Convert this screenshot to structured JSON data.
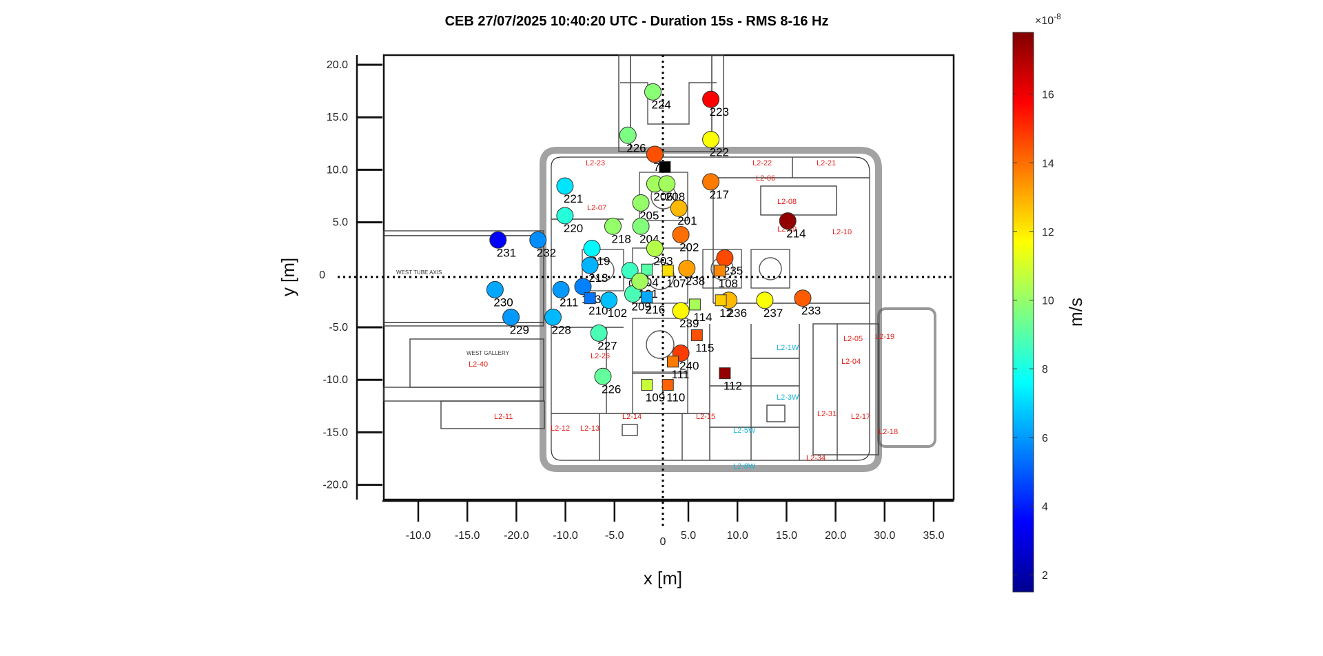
{
  "chart_data": {
    "type": "scatter",
    "title": "CEB 27/07/2025 10:40:20 UTC - Duration 15s - RMS 8-16 Hz",
    "xlabel": "x [m]",
    "ylabel": "y [m]",
    "x_ticks": [
      {
        "label": "-10.0"
      },
      {
        "label": "-15.0"
      },
      {
        "label": "-20.0"
      },
      {
        "label": "-10.0"
      },
      {
        "label": "-5.0"
      },
      {
        "label": "0"
      },
      {
        "label": "5.0"
      },
      {
        "label": "10.0"
      },
      {
        "label": "15.0"
      },
      {
        "label": "20.0"
      },
      {
        "label": "30.0"
      },
      {
        "label": "35.0"
      }
    ],
    "y_ticks": [
      "20.0",
      "15.0",
      "10.0",
      "5.0",
      "0",
      "-5.0",
      "-10.0",
      "-15.0",
      "-20.0"
    ],
    "xlim": [
      -22,
      31
    ],
    "ylim": [
      -21,
      21
    ],
    "colorbar": {
      "label": "m/s",
      "exponent": "×10",
      "exponent_power": "-8",
      "min": 1.5,
      "max": 17.8,
      "ticks": [
        "2",
        "4",
        "6",
        "8",
        "10",
        "12",
        "14",
        "16"
      ],
      "colormap": "jet"
    },
    "floorplan_labels": [
      "L2-23",
      "L2-22",
      "L2-21",
      "L2-07",
      "L2-06",
      "L2-08",
      "L2-09",
      "L2-10",
      "L2-40",
      "L2-11",
      "L2-12",
      "L2-13",
      "L2-14",
      "L2-15",
      "L2-26",
      "L2-31",
      "L2-34",
      "L2-05",
      "L2-04",
      "L2-19",
      "L2-17",
      "L2-18",
      "L2-1W",
      "L2-3W",
      "L2-5W",
      "L2-8W",
      "WEST GALLERY",
      "WEST TUBE AXIS"
    ],
    "points": [
      {
        "label": "224",
        "shape": "circle",
        "x": -1.0,
        "y": 17.5,
        "value": 9.8
      },
      {
        "label": "223",
        "shape": "circle",
        "x": 4.8,
        "y": 16.8,
        "value": 15.8
      },
      {
        "label": "226",
        "shape": "circle",
        "x": -3.5,
        "y": 13.4,
        "value": 9.6
      },
      {
        "label": "222",
        "shape": "circle",
        "x": 4.8,
        "y": 13.0,
        "value": 11.6
      },
      {
        "label": "7",
        "shape": "circle",
        "x": -0.8,
        "y": 11.6,
        "value": 14.5
      },
      {
        "label": "7",
        "shape": "square",
        "x": 0.2,
        "y": 10.4,
        "value": 0.5
      },
      {
        "label": "221",
        "shape": "circle",
        "x": -9.8,
        "y": 8.6,
        "value": 7.2
      },
      {
        "label": "217",
        "shape": "circle",
        "x": 4.8,
        "y": 9.0,
        "value": 13.8
      },
      {
        "label": "206",
        "shape": "circle",
        "x": -0.8,
        "y": 8.8,
        "value": 10.2
      },
      {
        "label": "208",
        "shape": "circle",
        "x": 0.4,
        "y": 8.8,
        "value": 10.2
      },
      {
        "label": "205",
        "shape": "circle",
        "x": -2.2,
        "y": 7.0,
        "value": 10.0
      },
      {
        "label": "201",
        "shape": "circle",
        "x": 1.6,
        "y": 6.5,
        "value": 12.8
      },
      {
        "label": "220",
        "shape": "circle",
        "x": -9.8,
        "y": 5.8,
        "value": 8.2
      },
      {
        "label": "218",
        "shape": "circle",
        "x": -5.0,
        "y": 4.8,
        "value": 10.0
      },
      {
        "label": "204",
        "shape": "circle",
        "x": -2.2,
        "y": 4.8,
        "value": 9.7
      },
      {
        "label": "214",
        "shape": "circle",
        "x": 12.5,
        "y": 5.3,
        "value": 17.5
      },
      {
        "label": "202",
        "shape": "circle",
        "x": 1.8,
        "y": 4.0,
        "value": 14.0
      },
      {
        "label": "231",
        "shape": "circle",
        "x": -16.5,
        "y": 3.5,
        "value": 3.5
      },
      {
        "label": "232",
        "shape": "circle",
        "x": -12.5,
        "y": 3.5,
        "value": 5.8
      },
      {
        "label": "219",
        "shape": "circle",
        "x": -7.1,
        "y": 2.7,
        "value": 7.5
      },
      {
        "label": "203",
        "shape": "circle",
        "x": -0.8,
        "y": 2.7,
        "value": 10.5
      },
      {
        "label": "213",
        "shape": "circle",
        "x": -7.3,
        "y": 1.1,
        "value": 6.4
      },
      {
        "label": "235",
        "shape": "circle",
        "x": 6.2,
        "y": 1.8,
        "value": 14.6
      },
      {
        "label": "04",
        "shape": "circle",
        "x": -3.3,
        "y": 0.6,
        "value": 8.6
      },
      {
        "label": "04",
        "shape": "square",
        "x": -1.6,
        "y": 0.7,
        "value": 9.0
      },
      {
        "label": "107",
        "shape": "square",
        "x": 0.5,
        "y": 0.6,
        "value": 12.2
      },
      {
        "label": "238",
        "shape": "circle",
        "x": 2.4,
        "y": 0.8,
        "value": 13.2
      },
      {
        "label": "108",
        "shape": "square",
        "x": 5.7,
        "y": 0.6,
        "value": 13.6
      },
      {
        "label": "103",
        "shape": "circle",
        "x": -8.0,
        "y": -0.9,
        "value": 5.6
      },
      {
        "label": "211",
        "shape": "circle",
        "x": -10.2,
        "y": -1.2,
        "value": 6.0
      },
      {
        "label": "230",
        "shape": "circle",
        "x": -16.8,
        "y": -1.2,
        "value": 6.2
      },
      {
        "label": "210",
        "shape": "square",
        "x": -7.3,
        "y": -2.0,
        "value": 5.4
      },
      {
        "label": "102",
        "shape": "circle",
        "x": -5.4,
        "y": -2.2,
        "value": 6.6
      },
      {
        "label": "209",
        "shape": "circle",
        "x": -3.0,
        "y": -1.6,
        "value": 8.8
      },
      {
        "label": "101",
        "shape": "circle",
        "x": -2.3,
        "y": -0.4,
        "value": 10.2
      },
      {
        "label": "216",
        "shape": "square",
        "x": -1.6,
        "y": -1.9,
        "value": 6.2
      },
      {
        "label": "114",
        "shape": "square",
        "x": 3.2,
        "y": -2.6,
        "value": 10.3
      },
      {
        "label": "236",
        "shape": "circle",
        "x": 6.6,
        "y": -2.2,
        "value": 12.8
      },
      {
        "label": "12",
        "shape": "square",
        "x": 5.8,
        "y": -2.2,
        "value": 12.5
      },
      {
        "label": "237",
        "shape": "circle",
        "x": 10.2,
        "y": -2.2,
        "value": 11.6
      },
      {
        "label": "233",
        "shape": "circle",
        "x": 14.0,
        "y": -2.0,
        "value": 14.3
      },
      {
        "label": "239",
        "shape": "circle",
        "x": 1.8,
        "y": -3.2,
        "value": 11.8
      },
      {
        "label": "229",
        "shape": "circle",
        "x": -15.2,
        "y": -3.8,
        "value": 6.0
      },
      {
        "label": "228",
        "shape": "circle",
        "x": -11.0,
        "y": -3.8,
        "value": 6.5
      },
      {
        "label": "227",
        "shape": "circle",
        "x": -6.4,
        "y": -5.3,
        "value": 8.8
      },
      {
        "label": "115",
        "shape": "square",
        "x": 3.4,
        "y": -5.5,
        "value": 14.5
      },
      {
        "label": "240",
        "shape": "circle",
        "x": 1.8,
        "y": -7.2,
        "value": 14.8
      },
      {
        "label": "111",
        "shape": "square",
        "x": 1.0,
        "y": -8.0,
        "value": 13.8
      },
      {
        "label": "112",
        "shape": "square",
        "x": 6.2,
        "y": -9.1,
        "value": 17.5
      },
      {
        "label": "226",
        "shape": "circle",
        "x": -6.0,
        "y": -9.4,
        "value": 9.2
      },
      {
        "label": "109",
        "shape": "square",
        "x": -1.6,
        "y": -10.2,
        "value": 10.8
      },
      {
        "label": "110",
        "shape": "square",
        "x": 0.5,
        "y": -10.2,
        "value": 14.2
      }
    ]
  }
}
